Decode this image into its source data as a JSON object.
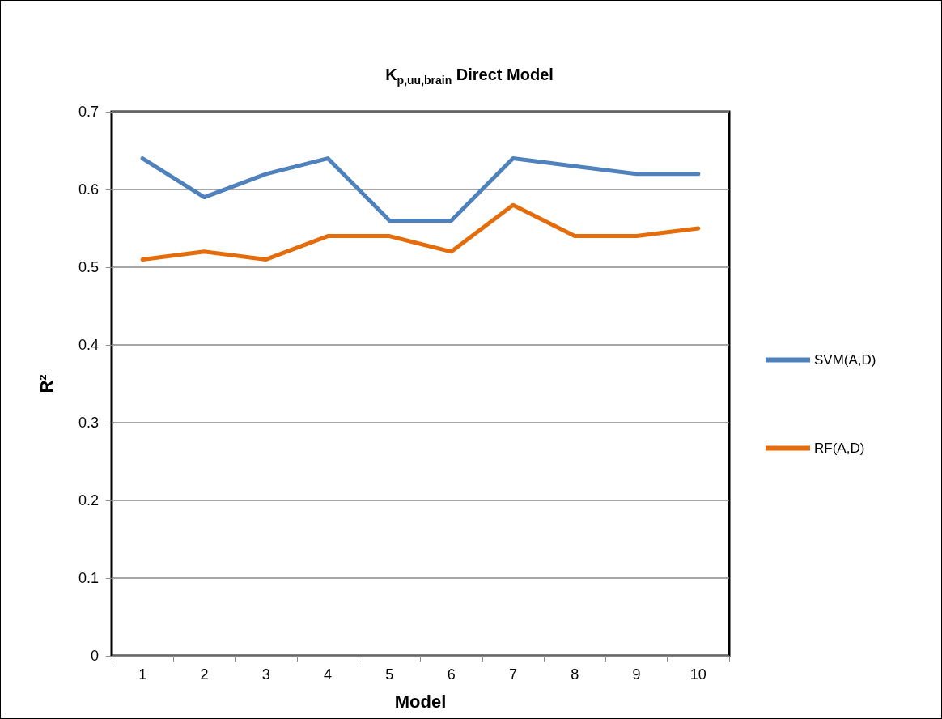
{
  "chart_data": {
    "type": "line",
    "title": "K$_{p,uu,brain}$ Direct Model",
    "xlabel": "Model",
    "ylabel": "R²",
    "categories": [
      "1",
      "2",
      "3",
      "4",
      "5",
      "6",
      "7",
      "8",
      "9",
      "10"
    ],
    "series": [
      {
        "name": "SVM(A,D)",
        "color": "#4f81bd",
        "values": [
          0.64,
          0.59,
          0.62,
          0.64,
          0.56,
          0.56,
          0.64,
          0.63,
          0.62,
          0.62
        ]
      },
      {
        "name": "RF(A,D)",
        "color": "#e46c0a",
        "values": [
          0.51,
          0.52,
          0.51,
          0.54,
          0.54,
          0.52,
          0.58,
          0.54,
          0.54,
          0.55
        ]
      }
    ],
    "ylim": [
      0,
      0.7
    ],
    "yticks": [
      0,
      0.1,
      0.2,
      0.3,
      0.4,
      0.5,
      0.6,
      0.7
    ],
    "grid": "y",
    "legend": "right",
    "marker": "none",
    "line_style": "solid"
  }
}
